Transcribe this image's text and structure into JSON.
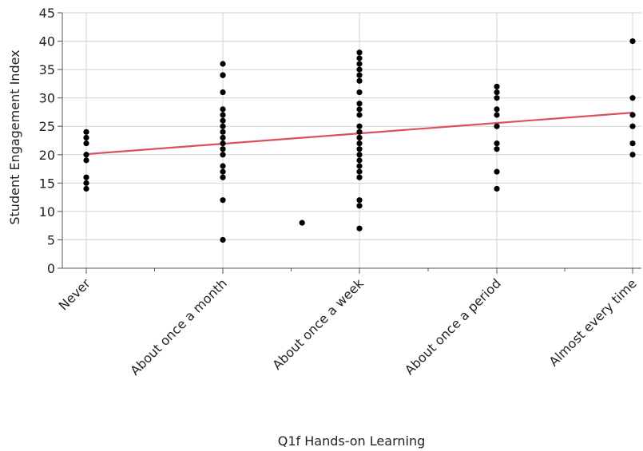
{
  "chart_data": {
    "type": "scatter",
    "xlabel": "Q1f Hands-on Learning",
    "ylabel": "Student Engagement Index",
    "categories": [
      "Never",
      "About once a month",
      "About once a week",
      "About once a period",
      "Almost every time"
    ],
    "ylim": [
      0,
      45
    ],
    "yticks": [
      0,
      5,
      10,
      15,
      20,
      25,
      30,
      35,
      40,
      45
    ],
    "grid": true,
    "points": [
      {
        "x": 0,
        "y": 24
      },
      {
        "x": 0,
        "y": 23
      },
      {
        "x": 0,
        "y": 22
      },
      {
        "x": 0,
        "y": 20
      },
      {
        "x": 0,
        "y": 19
      },
      {
        "x": 0,
        "y": 16
      },
      {
        "x": 0,
        "y": 15
      },
      {
        "x": 0,
        "y": 14
      },
      {
        "x": 1,
        "y": 36
      },
      {
        "x": 1,
        "y": 34
      },
      {
        "x": 1,
        "y": 34
      },
      {
        "x": 1,
        "y": 31
      },
      {
        "x": 1,
        "y": 28
      },
      {
        "x": 1,
        "y": 27
      },
      {
        "x": 1,
        "y": 26
      },
      {
        "x": 1,
        "y": 25
      },
      {
        "x": 1,
        "y": 24
      },
      {
        "x": 1,
        "y": 23
      },
      {
        "x": 1,
        "y": 22
      },
      {
        "x": 1,
        "y": 21
      },
      {
        "x": 1,
        "y": 20
      },
      {
        "x": 1,
        "y": 18
      },
      {
        "x": 1,
        "y": 17
      },
      {
        "x": 1,
        "y": 16
      },
      {
        "x": 1,
        "y": 12
      },
      {
        "x": 1,
        "y": 5
      },
      {
        "x": 1.58,
        "y": 8
      },
      {
        "x": 2,
        "y": 38
      },
      {
        "x": 2,
        "y": 37
      },
      {
        "x": 2,
        "y": 36
      },
      {
        "x": 2,
        "y": 35
      },
      {
        "x": 2,
        "y": 34
      },
      {
        "x": 2,
        "y": 33
      },
      {
        "x": 2,
        "y": 31
      },
      {
        "x": 2,
        "y": 29
      },
      {
        "x": 2,
        "y": 28
      },
      {
        "x": 2,
        "y": 27
      },
      {
        "x": 2,
        "y": 25
      },
      {
        "x": 2,
        "y": 24
      },
      {
        "x": 2,
        "y": 23
      },
      {
        "x": 2,
        "y": 22
      },
      {
        "x": 2,
        "y": 21
      },
      {
        "x": 2,
        "y": 20
      },
      {
        "x": 2,
        "y": 19
      },
      {
        "x": 2,
        "y": 18
      },
      {
        "x": 2,
        "y": 17
      },
      {
        "x": 2,
        "y": 16
      },
      {
        "x": 2,
        "y": 12
      },
      {
        "x": 2,
        "y": 11
      },
      {
        "x": 2,
        "y": 7
      },
      {
        "x": 3,
        "y": 32
      },
      {
        "x": 3,
        "y": 31
      },
      {
        "x": 3,
        "y": 30
      },
      {
        "x": 3,
        "y": 28
      },
      {
        "x": 3,
        "y": 27
      },
      {
        "x": 3,
        "y": 25
      },
      {
        "x": 3,
        "y": 22
      },
      {
        "x": 3,
        "y": 21
      },
      {
        "x": 3,
        "y": 17
      },
      {
        "x": 3,
        "y": 14
      },
      {
        "x": 4,
        "y": 40
      },
      {
        "x": 4,
        "y": 30
      },
      {
        "x": 4,
        "y": 27
      },
      {
        "x": 4,
        "y": 25
      },
      {
        "x": 4,
        "y": 22
      },
      {
        "x": 4,
        "y": 20
      }
    ],
    "fit_line": {
      "start": [
        0,
        20.1
      ],
      "end": [
        4,
        27.4
      ],
      "color": "#d9505e"
    },
    "colors": {
      "point": "#000000",
      "grid": "#d4d4d4",
      "axis": "#555555"
    }
  }
}
